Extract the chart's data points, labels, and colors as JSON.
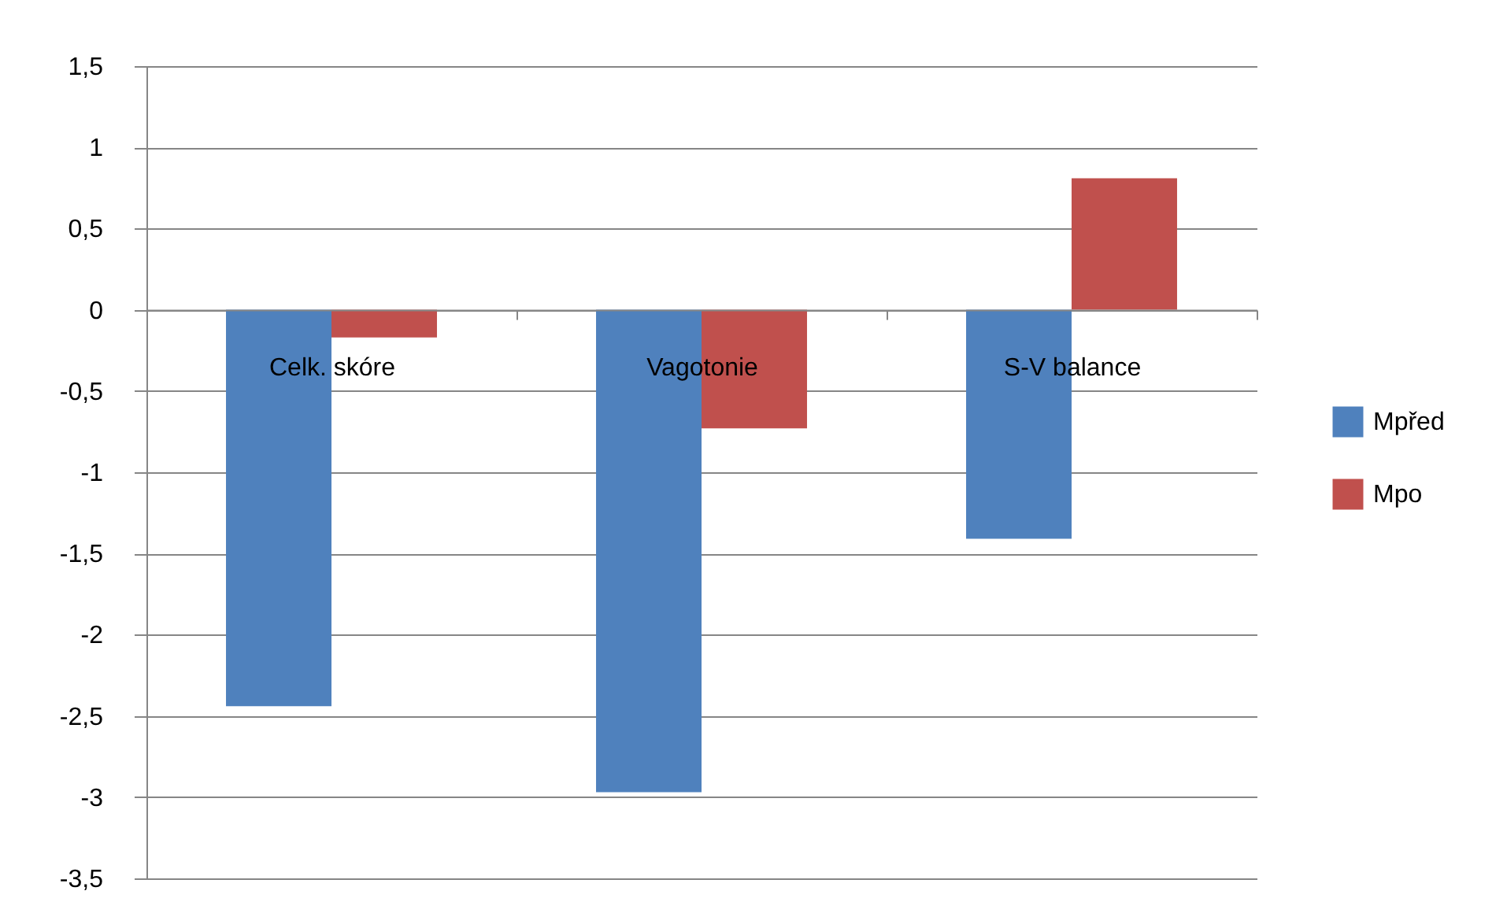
{
  "chart_data": {
    "type": "bar",
    "categories": [
      "Celk. skóre",
      "Vagotonie",
      "S-V balance"
    ],
    "series": [
      {
        "name": "Mpřed",
        "color": "#4f81bd",
        "values": [
          -2.44,
          -2.97,
          -1.41
        ]
      },
      {
        "name": "Mpo",
        "color": "#c0504d",
        "values": [
          -0.17,
          -0.73,
          0.81
        ]
      }
    ],
    "ylim": [
      -3.5,
      1.5
    ],
    "yticks": [
      {
        "value": -3.5,
        "label": "-3,5"
      },
      -3,
      {
        "value": -2.5,
        "label": "-2,5"
      },
      -2,
      {
        "value": -1.5,
        "label": "-1,5"
      },
      -1,
      {
        "value": -0.5,
        "label": "-0,5"
      },
      0,
      {
        "value": 0.5,
        "label": "0,5"
      },
      1,
      {
        "value": 1.5,
        "label": "1,5"
      }
    ],
    "grid": "y",
    "legend": "right"
  }
}
